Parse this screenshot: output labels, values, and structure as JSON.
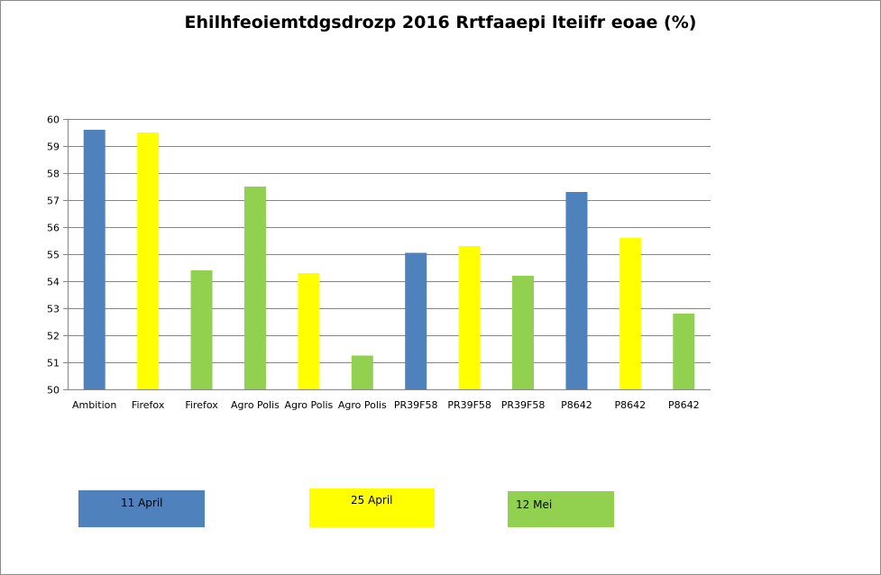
{
  "chart_data": {
    "type": "bar",
    "title": "Ehilhfeoiemtdgsdrozp 2016 Rrtfaaepi lteiifr eoae (%)",
    "xlabel": "",
    "ylabel": "",
    "ylim": [
      50,
      60
    ],
    "yticks": [
      50,
      51,
      52,
      53,
      54,
      55,
      56,
      57,
      58,
      59,
      60
    ],
    "grid": true,
    "categories": [
      "Ambition",
      "Firefox",
      "Firefox",
      "Agro Polis",
      "Agro Polis",
      "Agro Polis",
      "PR39F58",
      "PR39F58",
      "PR39F58",
      "P8642",
      "P8642",
      "P8642"
    ],
    "values": [
      59.6,
      59.5,
      54.4,
      57.5,
      54.3,
      51.25,
      55.05,
      55.3,
      54.2,
      57.3,
      55.6,
      52.8
    ],
    "bar_series": [
      "11 April",
      "25 April",
      "12 Mei",
      "12 Mei",
      "25 April",
      "12 Mei",
      "11 April",
      "25 April",
      "12 Mei",
      "11 April",
      "25 April",
      "12 Mei"
    ],
    "legend": [
      {
        "name": "11 April",
        "color": "#4f81bd"
      },
      {
        "name": "25 April",
        "color": "#ffff00"
      },
      {
        "name": "12 Mei",
        "color": "#92d050"
      }
    ],
    "legend_position": "bottom"
  }
}
